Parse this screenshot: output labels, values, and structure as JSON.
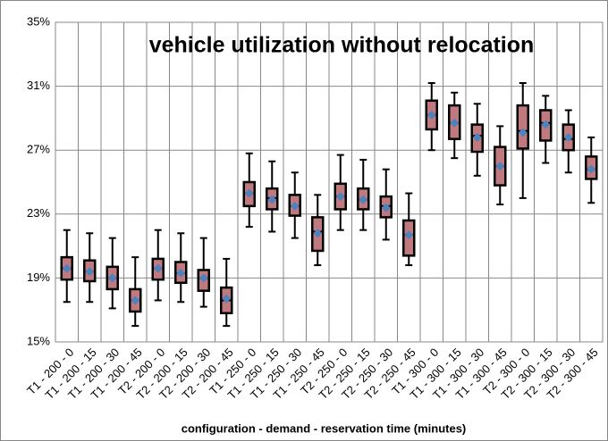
{
  "chart_data": {
    "type": "box",
    "title": "vehicle utilization without relocation",
    "x_label": "configuration - demand - reservation time (minutes)",
    "categories": [
      "T1 - 200 - 0",
      "T1 - 200 - 15",
      "T1 - 200 - 30",
      "T1 - 200 - 45",
      "T2 - 200 - 0",
      "T2 - 200 - 15",
      "T2 - 200 - 30",
      "T2 - 200 - 45",
      "T1 - 250 - 0",
      "T1 - 250 - 15",
      "T1 - 250 - 30",
      "T1 - 250 - 45",
      "T2 - 250 - 0",
      "T2 - 250 - 15",
      "T2 - 250 - 30",
      "T2 - 250 - 45",
      "T1 - 300 - 0",
      "T1 - 300 - 15",
      "T1 - 300 - 30",
      "T1 - 300 - 45",
      "T2 - 300 - 0",
      "T2 - 300 - 15",
      "T2 - 300 - 30",
      "T2 - 300 - 45"
    ],
    "boxes": [
      {
        "whislo": 17.5,
        "q1": 18.9,
        "med": 19.6,
        "q3": 20.3,
        "whishi": 22.0,
        "mean": 19.6
      },
      {
        "whislo": 17.5,
        "q1": 18.8,
        "med": 19.4,
        "q3": 20.1,
        "whishi": 21.8,
        "mean": 19.4
      },
      {
        "whislo": 17.1,
        "q1": 18.3,
        "med": 19.0,
        "q3": 19.7,
        "whishi": 21.5,
        "mean": 19.0
      },
      {
        "whislo": 16.0,
        "q1": 16.9,
        "med": 17.6,
        "q3": 18.3,
        "whishi": 20.3,
        "mean": 17.6
      },
      {
        "whislo": 17.6,
        "q1": 18.9,
        "med": 19.6,
        "q3": 20.2,
        "whishi": 22.0,
        "mean": 19.6
      },
      {
        "whislo": 17.5,
        "q1": 18.7,
        "med": 19.3,
        "q3": 20.0,
        "whishi": 21.8,
        "mean": 19.3
      },
      {
        "whislo": 17.2,
        "q1": 18.2,
        "med": 19.0,
        "q3": 19.5,
        "whishi": 21.5,
        "mean": 19.0
      },
      {
        "whislo": 16.0,
        "q1": 16.8,
        "med": 17.6,
        "q3": 18.4,
        "whishi": 20.2,
        "mean": 17.7
      },
      {
        "whislo": 22.2,
        "q1": 23.5,
        "med": 24.3,
        "q3": 25.0,
        "whishi": 26.8,
        "mean": 24.3
      },
      {
        "whislo": 21.9,
        "q1": 23.3,
        "med": 24.0,
        "q3": 24.6,
        "whishi": 26.3,
        "mean": 23.9
      },
      {
        "whislo": 21.5,
        "q1": 22.9,
        "med": 23.5,
        "q3": 24.2,
        "whishi": 25.6,
        "mean": 23.5
      },
      {
        "whislo": 19.8,
        "q1": 20.7,
        "med": 21.9,
        "q3": 22.8,
        "whishi": 24.2,
        "mean": 21.8
      },
      {
        "whislo": 22.0,
        "q1": 23.3,
        "med": 24.1,
        "q3": 24.9,
        "whishi": 26.7,
        "mean": 24.1
      },
      {
        "whislo": 22.0,
        "q1": 23.3,
        "med": 23.9,
        "q3": 24.6,
        "whishi": 26.4,
        "mean": 23.9
      },
      {
        "whislo": 21.4,
        "q1": 22.8,
        "med": 23.5,
        "q3": 24.1,
        "whishi": 25.8,
        "mean": 23.4
      },
      {
        "whislo": 19.8,
        "q1": 20.4,
        "med": 21.7,
        "q3": 22.6,
        "whishi": 24.3,
        "mean": 21.7
      },
      {
        "whislo": 27.0,
        "q1": 28.3,
        "med": 29.2,
        "q3": 30.1,
        "whishi": 31.2,
        "mean": 29.2
      },
      {
        "whislo": 26.5,
        "q1": 27.7,
        "med": 28.7,
        "q3": 29.8,
        "whishi": 30.6,
        "mean": 28.7
      },
      {
        "whislo": 25.4,
        "q1": 26.9,
        "med": 27.9,
        "q3": 28.6,
        "whishi": 29.9,
        "mean": 27.8
      },
      {
        "whislo": 23.6,
        "q1": 24.8,
        "med": 26.0,
        "q3": 27.2,
        "whishi": 28.5,
        "mean": 26.0
      },
      {
        "whislo": 24.0,
        "q1": 27.1,
        "med": 28.2,
        "q3": 29.8,
        "whishi": 31.2,
        "mean": 28.1
      },
      {
        "whislo": 26.2,
        "q1": 27.6,
        "med": 28.7,
        "q3": 29.5,
        "whishi": 30.4,
        "mean": 28.6
      },
      {
        "whislo": 25.6,
        "q1": 27.0,
        "med": 27.7,
        "q3": 28.6,
        "whishi": 29.5,
        "mean": 27.8
      },
      {
        "whislo": 23.7,
        "q1": 25.2,
        "med": 25.8,
        "q3": 26.6,
        "whishi": 27.8,
        "mean": 25.8
      }
    ],
    "box_color": "#c07a7e",
    "mean_color": "#4f81bd",
    "ylim": [
      15,
      35
    ],
    "yticks": [
      {
        "value": 15,
        "label": "15%"
      },
      {
        "value": 19,
        "label": "19%"
      },
      {
        "value": 23,
        "label": "23%"
      },
      {
        "value": 27,
        "label": "27%"
      },
      {
        "value": 31,
        "label": "31%"
      },
      {
        "value": 35,
        "label": "35%"
      }
    ],
    "grid": true
  }
}
